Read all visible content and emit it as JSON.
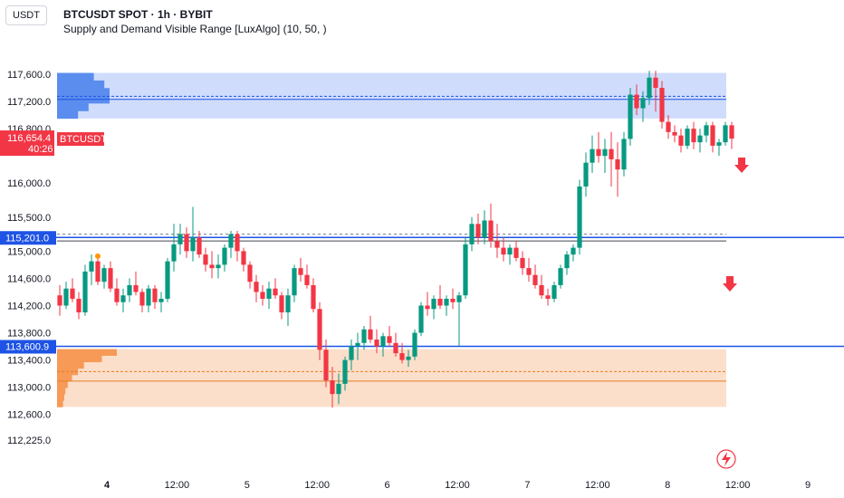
{
  "header": {
    "currency_button": "USDT",
    "symbol_line": "BTCUSDT SPOT · 1h · BYBIT",
    "indicator_line": "Supply and Demand Visible Range [LuxAlgo] (10, 50, )"
  },
  "colors": {
    "up": "#089981",
    "down": "#f23645",
    "supply_zone": "#c7d6fb",
    "supply_profile": "#5b8def",
    "demand_zone": "#fcd9c2",
    "demand_profile": "#f79a57",
    "level_line": "#1e53e5",
    "price_label": "#f23645"
  },
  "chart_data": {
    "type": "candlestick",
    "y_ticks": [
      "117,600.0",
      "117,200.0",
      "116,800.0",
      "116,000.0",
      "115,500.0",
      "115,000.0",
      "114,600.0",
      "114,200.0",
      "113,800.0",
      "113,400.0",
      "113,000.0",
      "112,600.0",
      "112,225.0"
    ],
    "y_tick_values": [
      117600,
      117200,
      116800,
      116000,
      115500,
      115000,
      114600,
      114200,
      113800,
      113400,
      113000,
      112600,
      112225
    ],
    "x_ticks": [
      {
        "label": "4",
        "bold": true,
        "hour": 0
      },
      {
        "label": "12:00",
        "bold": false,
        "hour": 12
      },
      {
        "label": "5",
        "bold": false,
        "hour": 24
      },
      {
        "label": "12:00",
        "bold": false,
        "hour": 36
      },
      {
        "label": "6",
        "bold": false,
        "hour": 48
      },
      {
        "label": "12:00",
        "bold": false,
        "hour": 60
      },
      {
        "label": "7",
        "bold": false,
        "hour": 72
      },
      {
        "label": "12:00",
        "bold": false,
        "hour": 84
      },
      {
        "label": "8",
        "bold": false,
        "hour": 96
      },
      {
        "label": "12:00",
        "bold": false,
        "hour": 108
      },
      {
        "label": "9",
        "bold": false,
        "hour": 120
      }
    ],
    "ohlc": [
      [
        114350,
        114500,
        114050,
        114200
      ],
      [
        114200,
        114550,
        114150,
        114450
      ],
      [
        114450,
        114600,
        114250,
        114300
      ],
      [
        114300,
        114400,
        114000,
        114100
      ],
      [
        114100,
        114800,
        114050,
        114700
      ],
      [
        114700,
        114950,
        114500,
        114850
      ],
      [
        114850,
        114900,
        114500,
        114550
      ],
      [
        114550,
        114800,
        114450,
        114750
      ],
      [
        114750,
        114850,
        114400,
        114450
      ],
      [
        114450,
        114600,
        114200,
        114250
      ],
      [
        114250,
        114450,
        114100,
        114350
      ],
      [
        114350,
        114600,
        114250,
        114500
      ],
      [
        114500,
        114700,
        114350,
        114400
      ],
      [
        114400,
        114450,
        114100,
        114200
      ],
      [
        114200,
        114500,
        114100,
        114450
      ],
      [
        114450,
        114500,
        114150,
        114250
      ],
      [
        114250,
        114400,
        114100,
        114300
      ],
      [
        114300,
        114900,
        114250,
        114850
      ],
      [
        114850,
        115400,
        114700,
        115100
      ],
      [
        115100,
        115400,
        114950,
        115250
      ],
      [
        115250,
        115350,
        114900,
        115000
      ],
      [
        115000,
        115650,
        114850,
        115200
      ],
      [
        115200,
        115300,
        114900,
        114950
      ],
      [
        114950,
        115050,
        114700,
        114800
      ],
      [
        114800,
        115000,
        114600,
        114750
      ],
      [
        114750,
        114950,
        114600,
        114800
      ],
      [
        114800,
        115100,
        114700,
        115050
      ],
      [
        115050,
        115300,
        114900,
        115250
      ],
      [
        115250,
        115300,
        114850,
        115000
      ],
      [
        115000,
        115050,
        114700,
        114800
      ],
      [
        114800,
        114850,
        114450,
        114550
      ],
      [
        114550,
        114650,
        114250,
        114400
      ],
      [
        114400,
        114500,
        114200,
        114300
      ],
      [
        114300,
        114550,
        114150,
        114450
      ],
      [
        114450,
        114600,
        114300,
        114350
      ],
      [
        114350,
        114400,
        114000,
        114100
      ],
      [
        114100,
        114450,
        113900,
        114350
      ],
      [
        114350,
        114800,
        114250,
        114750
      ],
      [
        114750,
        114900,
        114550,
        114650
      ],
      [
        114650,
        114800,
        114450,
        114500
      ],
      [
        114500,
        114600,
        114100,
        114150
      ],
      [
        114150,
        114250,
        113400,
        113550
      ],
      [
        113550,
        113700,
        113000,
        113100
      ],
      [
        113100,
        113300,
        112700,
        112900
      ],
      [
        112900,
        113200,
        112750,
        113050
      ],
      [
        113050,
        113450,
        112950,
        113400
      ],
      [
        113400,
        113700,
        113250,
        113600
      ],
      [
        113600,
        113800,
        113400,
        113650
      ],
      [
        113650,
        113900,
        113550,
        113850
      ],
      [
        113850,
        114050,
        113650,
        113700
      ],
      [
        113700,
        113850,
        113500,
        113600
      ],
      [
        113600,
        113800,
        113450,
        113750
      ],
      [
        113750,
        113900,
        113600,
        113650
      ],
      [
        113650,
        113800,
        113450,
        113500
      ],
      [
        113500,
        113650,
        113350,
        113400
      ],
      [
        113400,
        113550,
        113300,
        113450
      ],
      [
        113450,
        113850,
        113400,
        113800
      ],
      [
        113800,
        114250,
        113750,
        114200
      ],
      [
        114200,
        114400,
        114050,
        114150
      ],
      [
        114150,
        114350,
        114000,
        114300
      ],
      [
        114300,
        114500,
        114150,
        114200
      ],
      [
        114200,
        114350,
        114050,
        114300
      ],
      [
        114300,
        114450,
        114150,
        114250
      ],
      [
        114250,
        114400,
        113600,
        114350
      ],
      [
        114350,
        115200,
        114300,
        115100
      ],
      [
        115100,
        115500,
        115000,
        115400
      ],
      [
        115400,
        115550,
        115100,
        115200
      ],
      [
        115200,
        115600,
        115100,
        115450
      ],
      [
        115450,
        115700,
        115050,
        115150
      ],
      [
        115150,
        115400,
        114900,
        115050
      ],
      [
        115050,
        115200,
        114850,
        114950
      ],
      [
        114950,
        115100,
        114800,
        115050
      ],
      [
        115050,
        115150,
        114850,
        114900
      ],
      [
        114900,
        115000,
        114650,
        114750
      ],
      [
        114750,
        114900,
        114550,
        114650
      ],
      [
        114650,
        114800,
        114450,
        114500
      ],
      [
        114500,
        114650,
        114300,
        114350
      ],
      [
        114350,
        114450,
        114200,
        114300
      ],
      [
        114300,
        114550,
        114250,
        114500
      ],
      [
        114500,
        114800,
        114450,
        114750
      ],
      [
        114750,
        115000,
        114650,
        114950
      ],
      [
        114950,
        115100,
        114850,
        115050
      ],
      [
        115050,
        116050,
        114950,
        115950
      ],
      [
        115950,
        116450,
        115800,
        116300
      ],
      [
        116300,
        116700,
        116150,
        116500
      ],
      [
        116500,
        116750,
        116300,
        116400
      ],
      [
        116400,
        116650,
        116150,
        116500
      ],
      [
        116500,
        116750,
        115950,
        116350
      ],
      [
        116350,
        116600,
        115800,
        116200
      ],
      [
        116200,
        116750,
        116100,
        116650
      ],
      [
        116650,
        117400,
        116550,
        117300
      ],
      [
        117300,
        117450,
        117000,
        117100
      ],
      [
        117100,
        117350,
        116900,
        117250
      ],
      [
        117250,
        117650,
        117150,
        117550
      ],
      [
        117550,
        117650,
        117050,
        117400
      ],
      [
        117400,
        117500,
        116800,
        116900
      ],
      [
        116900,
        117000,
        116650,
        116750
      ],
      [
        116750,
        116850,
        116600,
        116700
      ],
      [
        116700,
        116800,
        116450,
        116550
      ],
      [
        116550,
        116850,
        116500,
        116800
      ],
      [
        116800,
        116900,
        116500,
        116600
      ],
      [
        116600,
        116800,
        116450,
        116700
      ],
      [
        116700,
        116900,
        116600,
        116850
      ],
      [
        116850,
        116900,
        116450,
        116550
      ],
      [
        116550,
        116650,
        116400,
        116600
      ],
      [
        116600,
        116900,
        116550,
        116850
      ],
      [
        116850,
        116900,
        116500,
        116654
      ]
    ],
    "supply_zone": {
      "top": 117620,
      "bottom": 116950,
      "avg": 117275,
      "mid": 117230
    },
    "demand_zone": {
      "top": 113560,
      "bottom": 112710,
      "avg": 113230,
      "mid": 113090
    },
    "level_lines": [
      115201.0,
      113600.9
    ],
    "dashed_levels": [
      115250,
      115150
    ],
    "price_labels": {
      "current": {
        "symbol": "BTCUSDT",
        "price": "116,654.4",
        "countdown": "40:26",
        "value": 116654.4
      },
      "level_high": {
        "price": "115,201.0",
        "value": 115201.0
      },
      "level_low": {
        "price": "113,600.9",
        "value": 113600.9
      }
    },
    "supply_profile": [
      0.7,
      0.9,
      1.0,
      1.0,
      0.6,
      0.4
    ],
    "demand_profile": [
      1.0,
      0.75,
      0.45,
      0.35,
      0.25,
      0.18,
      0.14,
      0.12,
      0.1
    ]
  }
}
